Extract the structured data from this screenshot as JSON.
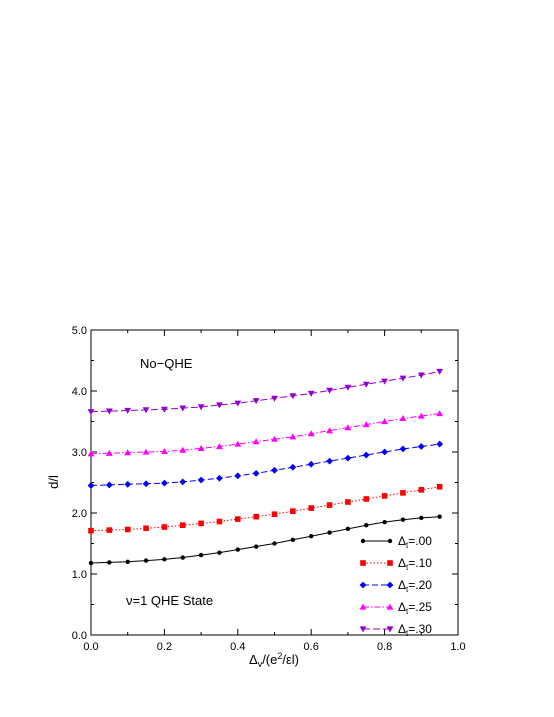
{
  "chart_data": {
    "type": "line",
    "title": "",
    "xlabel": {
      "base": "Δ",
      "sub": "v",
      "rest_before_sup": "/(e",
      "sup": "2",
      "rest_after_sup": "/εl)"
    },
    "ylabel": "d/l",
    "xlim": [
      0.0,
      1.0
    ],
    "ylim": [
      0.0,
      5.0
    ],
    "xticks": [
      "0.0",
      "0.2",
      "0.4",
      "0.6",
      "0.8",
      "1.0"
    ],
    "yticks": [
      "0.0",
      "1.0",
      "2.0",
      "3.0",
      "4.0",
      "5.0"
    ],
    "annotations": {
      "upper": "No−QHE",
      "lower": "ν=1 QHE State"
    },
    "legend_position": "lower-right",
    "x": [
      0.0,
      0.05,
      0.1,
      0.15,
      0.2,
      0.25,
      0.3,
      0.35,
      0.4,
      0.45,
      0.5,
      0.55,
      0.6,
      0.65,
      0.7,
      0.75,
      0.8,
      0.85,
      0.9,
      0.95
    ],
    "series": [
      {
        "label": {
          "base": "Δ",
          "sub": "t",
          "rest": "=.00"
        },
        "color": "#000000",
        "marker": "circle",
        "dash": "",
        "values": [
          1.18,
          1.19,
          1.2,
          1.22,
          1.24,
          1.27,
          1.31,
          1.35,
          1.4,
          1.45,
          1.5,
          1.56,
          1.62,
          1.68,
          1.74,
          1.8,
          1.85,
          1.89,
          1.92,
          1.94
        ]
      },
      {
        "label": {
          "base": "Δ",
          "sub": "t",
          "rest": "=.10"
        },
        "color": "#ff0000",
        "marker": "square",
        "dash": "1.5,2",
        "values": [
          1.71,
          1.72,
          1.73,
          1.75,
          1.77,
          1.8,
          1.83,
          1.86,
          1.9,
          1.94,
          1.98,
          2.03,
          2.08,
          2.13,
          2.18,
          2.23,
          2.28,
          2.33,
          2.38,
          2.43
        ]
      },
      {
        "label": {
          "base": "Δ",
          "sub": "t",
          "rest": "=.20"
        },
        "color": "#0000ff",
        "marker": "diamond",
        "dash": "6,3",
        "values": [
          2.45,
          2.46,
          2.47,
          2.48,
          2.49,
          2.51,
          2.54,
          2.57,
          2.61,
          2.65,
          2.7,
          2.75,
          2.8,
          2.85,
          2.9,
          2.95,
          3.0,
          3.05,
          3.09,
          3.13
        ]
      },
      {
        "label": {
          "base": "Δ",
          "sub": "t",
          "rest": "=.25"
        },
        "color": "#ff00ff",
        "marker": "triangle-up",
        "dash": "6,2,1.5,2",
        "values": [
          2.97,
          2.98,
          2.99,
          3.0,
          3.01,
          3.03,
          3.06,
          3.09,
          3.13,
          3.17,
          3.21,
          3.25,
          3.3,
          3.35,
          3.4,
          3.45,
          3.5,
          3.55,
          3.59,
          3.63
        ]
      },
      {
        "label": {
          "base": "Δ",
          "sub": "t",
          "rest": "=.30"
        },
        "color": "#9400d3",
        "marker": "triangle-down",
        "dash": "7,3",
        "values": [
          3.66,
          3.67,
          3.68,
          3.69,
          3.7,
          3.72,
          3.74,
          3.77,
          3.8,
          3.84,
          3.88,
          3.92,
          3.96,
          4.01,
          4.06,
          4.11,
          4.16,
          4.21,
          4.26,
          4.32
        ]
      }
    ]
  }
}
